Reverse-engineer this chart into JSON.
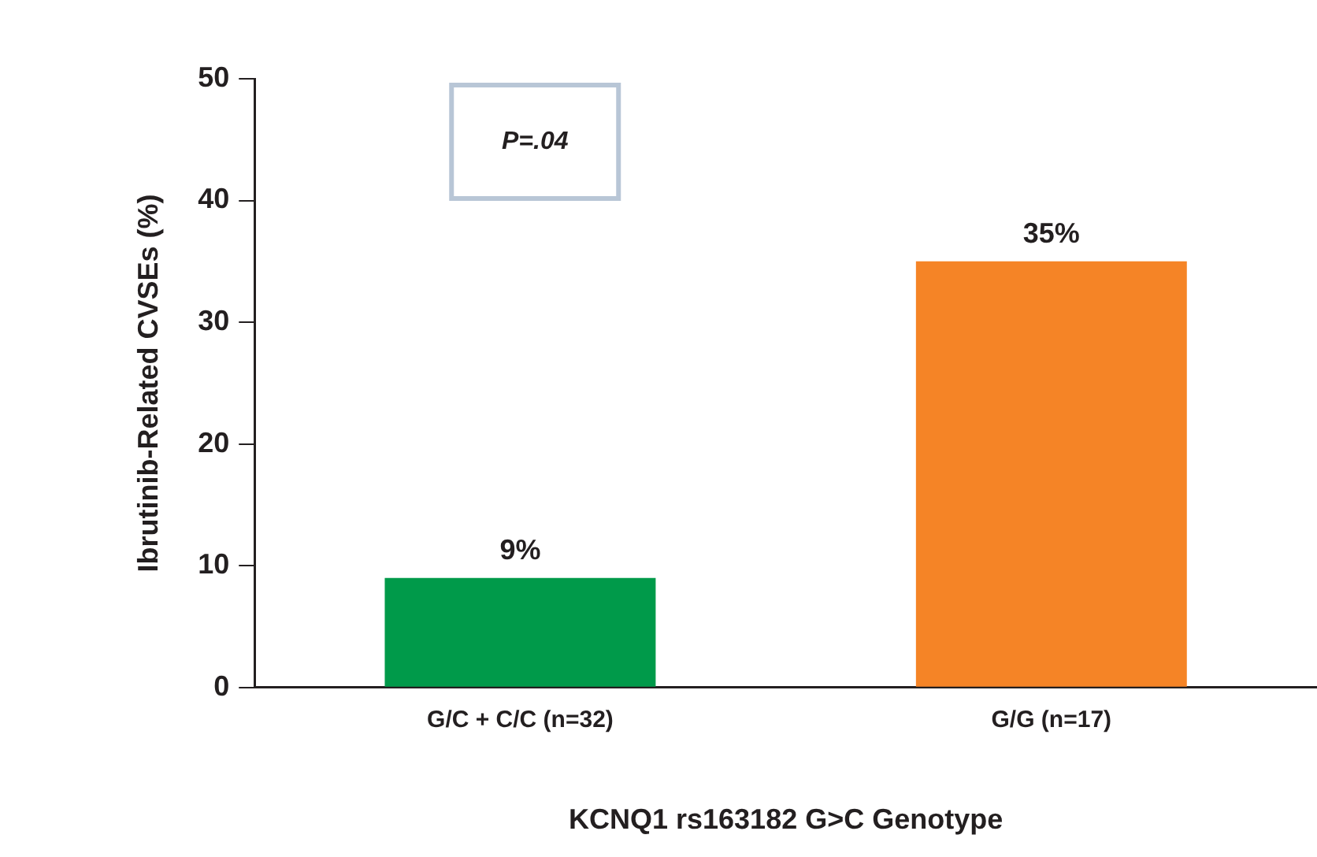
{
  "chart_data": {
    "type": "bar",
    "xlabel": "KCNQ1 rs163182 G>C Genotype",
    "ylabel": "Ibrutinib-Related CVSEs (%)",
    "categories": [
      "G/C + C/C (n=32)",
      "G/G (n=17)"
    ],
    "values": [
      9,
      35
    ],
    "colors": [
      "#009a4a",
      "#f58426"
    ],
    "value_labels": [
      "9%",
      "35%"
    ],
    "ylim": [
      0,
      50
    ],
    "yticks": [
      0,
      10,
      20,
      30,
      40,
      50
    ],
    "grid": false,
    "legend": false,
    "annotations": [
      "P=.04"
    ]
  }
}
